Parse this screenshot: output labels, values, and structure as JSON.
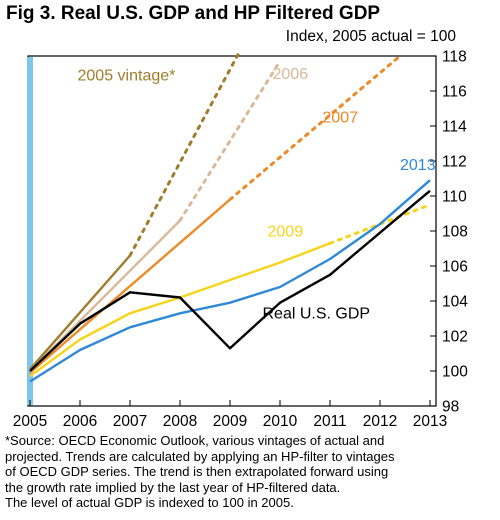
{
  "chart_data": {
    "type": "line",
    "title": "Fig 3. Real U.S. GDP and HP Filtered GDP",
    "subtitle": "Index, 2005 actual = 100",
    "xlim": [
      2005,
      2013
    ],
    "ylim": [
      98,
      118
    ],
    "x_ticks": [
      2005,
      2006,
      2007,
      2008,
      2009,
      2010,
      2011,
      2012,
      2013
    ],
    "y_ticks": [
      98,
      100,
      102,
      104,
      106,
      108,
      110,
      112,
      114,
      116,
      118
    ],
    "y_axis_side": "right",
    "grid": false,
    "reference_bar": {
      "x": 2005,
      "color": "#7fc6ec"
    },
    "series": [
      {
        "name": "2005 vintage*",
        "color": "#a07d2c",
        "solid": {
          "x": [
            2005,
            2007
          ],
          "y": [
            100.1,
            106.6
          ]
        },
        "dotted": {
          "x": [
            2007,
            2009.2
          ],
          "y": [
            106.6,
            118.3
          ]
        }
      },
      {
        "name": "2006",
        "color": "#d9b99a",
        "solid": {
          "x": [
            2005,
            2008
          ],
          "y": [
            100.0,
            108.6
          ]
        },
        "dotted": {
          "x": [
            2008,
            2010
          ],
          "y": [
            108.6,
            117.7
          ]
        }
      },
      {
        "name": "2007",
        "color": "#ed8a26",
        "solid": {
          "x": [
            2005,
            2009
          ],
          "y": [
            99.9,
            109.8
          ]
        },
        "dotted": {
          "x": [
            2009,
            2012.4
          ],
          "y": [
            109.8,
            118.0
          ]
        }
      },
      {
        "name": "2009",
        "color": "#f7d41a",
        "solid": {
          "x": [
            2005,
            2006,
            2007,
            2008,
            2009,
            2010,
            2011
          ],
          "y": [
            99.7,
            101.8,
            103.3,
            104.2,
            105.2,
            106.2,
            107.3
          ]
        },
        "dotted": {
          "x": [
            2011,
            2013
          ],
          "y": [
            107.3,
            109.5
          ]
        }
      },
      {
        "name": "2013",
        "color": "#2f89d6",
        "solid": {
          "x": [
            2005,
            2006,
            2007,
            2008,
            2009,
            2010,
            2011,
            2012,
            2013
          ],
          "y": [
            99.4,
            101.2,
            102.5,
            103.3,
            103.9,
            104.8,
            106.4,
            108.4,
            110.9
          ]
        }
      },
      {
        "name": "Real U.S. GDP",
        "color": "#000000",
        "solid": {
          "x": [
            2005,
            2006,
            2007,
            2008,
            2009,
            2010,
            2011,
            2012,
            2013
          ],
          "y": [
            100.0,
            102.7,
            104.5,
            104.2,
            101.3,
            103.9,
            105.5,
            107.9,
            110.3
          ]
        }
      }
    ],
    "annotations": [
      {
        "text": "2005 vintage*",
        "x": 2005.95,
        "y": 116.6,
        "color": "#a07d2c"
      },
      {
        "text": "2006",
        "x": 2009.85,
        "y": 116.7,
        "color": "#d9b99a"
      },
      {
        "text": "2007",
        "x": 2010.85,
        "y": 114.2,
        "color": "#ed8a26"
      },
      {
        "text": "2013",
        "x": 2012.4,
        "y": 111.5,
        "color": "#2f89d6"
      },
      {
        "text": "2009",
        "x": 2009.75,
        "y": 107.7,
        "color": "#f7d41a"
      },
      {
        "text": "Real U.S. GDP",
        "x": 2009.65,
        "y": 103.0,
        "color": "#000000"
      }
    ]
  },
  "source_note": [
    "*Source: OECD Economic Outlook, various vintages of actual and",
    "projected. Trends are calculated by applying an HP-filter to vintages",
    "of OECD GDP series. The trend is then extrapolated forward using",
    "the growth rate implied by the last year of HP-filtered data.",
    "The level of actual GDP is indexed to 100 in 2005."
  ]
}
